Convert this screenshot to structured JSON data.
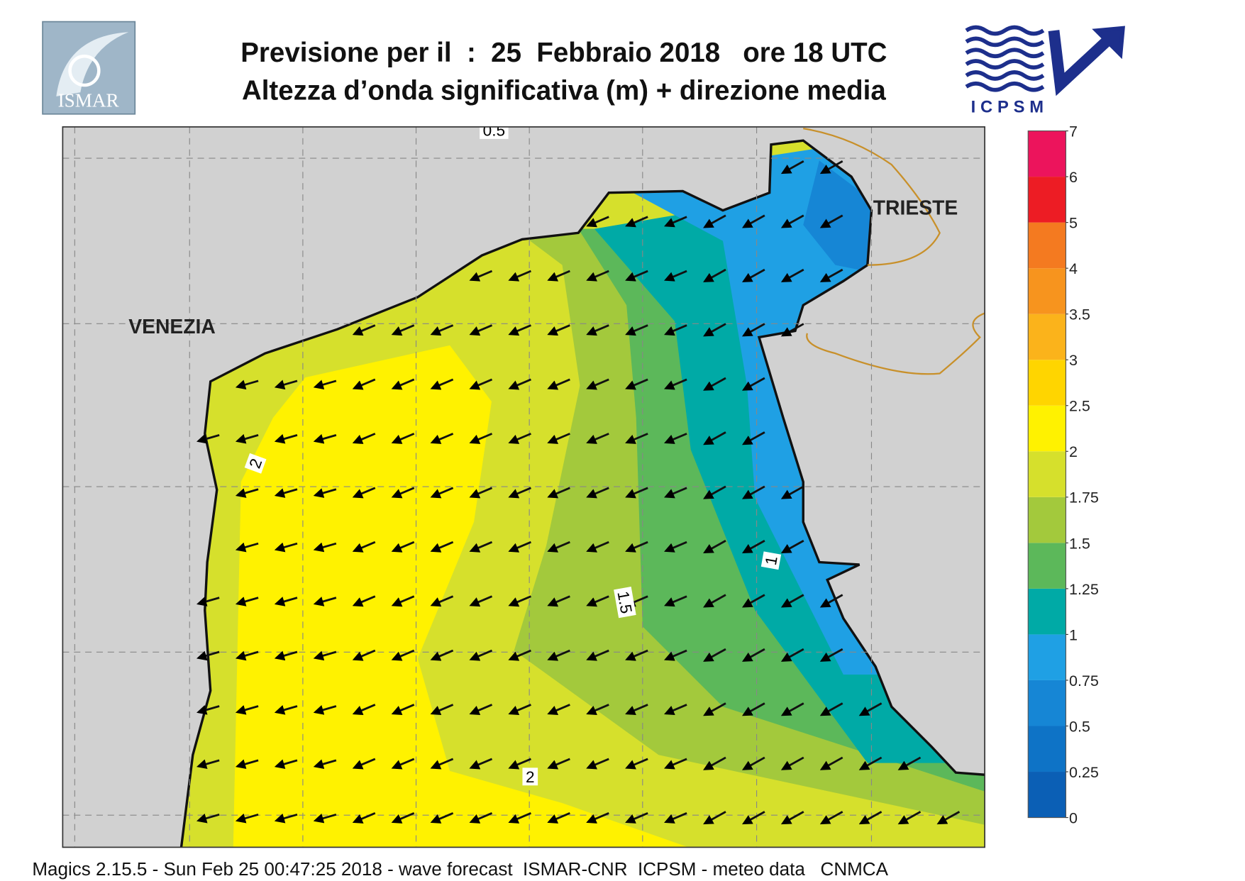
{
  "header": {
    "logo_left": "ISMAR",
    "title": "Previsione per il  :  25  Febbraio 2018   ore 18 UTC",
    "subtitle": "Altezza d’onda significativa (m) + direzione media",
    "logo_right": "ICPSM"
  },
  "map": {
    "places": [
      "VENEZIA",
      "TRIESTE"
    ],
    "contour_labels": [
      0.5,
      2,
      1.5,
      1,
      2
    ]
  },
  "legend": {
    "levels": [
      0,
      0.25,
      0.5,
      0.75,
      1,
      1.25,
      1.5,
      1.75,
      2,
      2.5,
      3,
      3.5,
      4,
      5,
      6,
      7
    ],
    "colors": [
      "#0b5fb5",
      "#0e73c6",
      "#1686d5",
      "#1fa0e4",
      "#00aaa6",
      "#5cb85a",
      "#a3c93c",
      "#d6e02c",
      "#fff200",
      "#ffd500",
      "#fbb31b",
      "#f7941e",
      "#f47a20",
      "#ed1c24",
      "#ec145c"
    ]
  },
  "footer": "Magics 2.15.5 - Sun Feb 25 00:47:25 2018 - wave forecast  ISMAR-CNR  ICPSM - meteo data   CNMCA"
}
